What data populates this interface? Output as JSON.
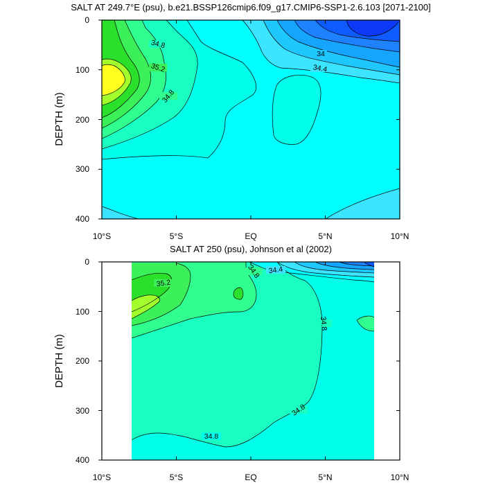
{
  "chart_data": [
    {
      "type": "contour",
      "title": "SALT AT 249.7°E (psu), b.e21.BSSP126cmip6.f09_g17.CMIP6-SSP1-2.6.103 [2071-2100]",
      "ylabel": "DEPTH (m)",
      "x_ticks": [
        "10°S",
        "5°S",
        "EQ",
        "5°N",
        "10°N"
      ],
      "y_ticks": [
        "0",
        "100",
        "200",
        "300",
        "400"
      ],
      "xlim": [
        -10,
        10
      ],
      "ylim": [
        400,
        0
      ],
      "contour_labels": [
        "34.8",
        "35.2",
        "34.8",
        "34",
        "34.4"
      ],
      "colors": {
        "high": "#ffff20",
        "yellowgreen": "#a2ff2b",
        "green1": "#2be02b",
        "green2": "#3cf05a",
        "green3": "#30ff90",
        "seafoam": "#19ffc2",
        "aqua": "#00ffe8",
        "cyan": "#00ffff",
        "sky1": "#3de4ff",
        "sky2": "#1ec8ff",
        "blue1": "#15a5ff",
        "blue2": "#1e82ff",
        "blue3": "#0e5cff",
        "blue4": "#0c3af8"
      }
    },
    {
      "type": "contour",
      "title": "SALT AT 250 (psu), Johnson et al (2002)",
      "ylabel": "DEPTH (m)",
      "x_ticks": [
        "10°S",
        "5°S",
        "EQ",
        "5°N",
        "10°N"
      ],
      "y_ticks": [
        "0",
        "100",
        "200",
        "300",
        "400"
      ],
      "xlim": [
        -10,
        10
      ],
      "ylim": [
        400,
        0
      ],
      "data_extent_lat": [
        -8,
        8.2
      ],
      "contour_labels": [
        "35.2",
        "34.8",
        "34.4",
        "34.8",
        "34.8",
        "34.8"
      ]
    }
  ]
}
